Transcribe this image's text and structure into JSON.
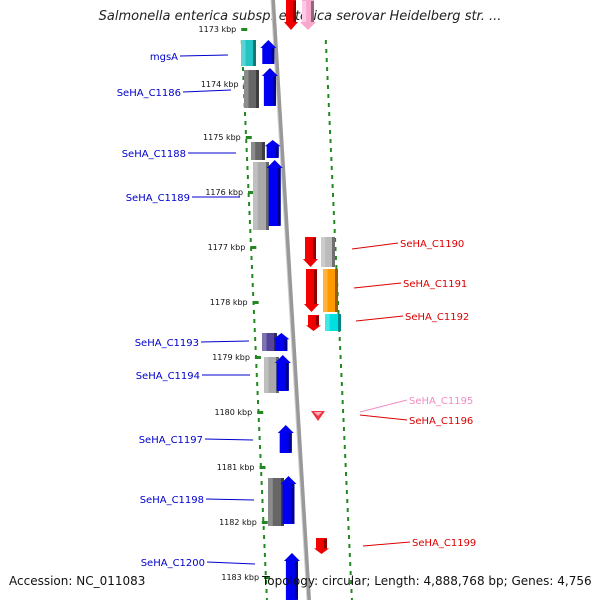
{
  "title": "Salmonella enterica subsp. enterica serovar Heidelberg str. ...",
  "footer": {
    "accession": "Accession: NC_011083",
    "topology": "Topology: circular; Length: 4,888,768 bp; Genes: 4,756"
  },
  "colors": {
    "forward_label": "#0000cc",
    "reverse_label": "#dd0000",
    "pale_label": "#f08cc0",
    "backbone": "#999999",
    "tick": "#228822"
  },
  "scale_ticks": [
    "1173 kbp",
    "1174 kbp",
    "1175 kbp",
    "1176 kbp",
    "1177 kbp",
    "1178 kbp",
    "1179 kbp",
    "1180 kbp",
    "1181 kbp",
    "1182 kbp",
    "1183 kbp"
  ],
  "genes_forward": [
    {
      "name": "mgsA",
      "color": "#0000ee"
    },
    {
      "name": "SeHA_C1186",
      "color": "#0000ee"
    },
    {
      "name": "SeHA_C1188",
      "color": "#0000ee"
    },
    {
      "name": "SeHA_C1189",
      "color": "#0000ee"
    },
    {
      "name": "SeHA_C1193",
      "color": "#0000ee"
    },
    {
      "name": "SeHA_C1194",
      "color": "#0000ee"
    },
    {
      "name": "SeHA_C1197",
      "color": "#0000ee"
    },
    {
      "name": "SeHA_C1198",
      "color": "#0000ee"
    },
    {
      "name": "SeHA_C1200",
      "color": "#0000ee"
    }
  ],
  "genes_reverse": [
    {
      "name": "SeHA_C1190",
      "color": "#ee0000"
    },
    {
      "name": "SeHA_C1191",
      "color": "#ee0000"
    },
    {
      "name": "SeHA_C1192",
      "color": "#ee0000"
    },
    {
      "name": "SeHA_C1195",
      "color": "#f08cc0"
    },
    {
      "name": "SeHA_C1196",
      "color": "#ee0000"
    },
    {
      "name": "SeHA_C1199",
      "color": "#ee0000"
    }
  ],
  "cog_boxes": [
    {
      "gene": "mgsA",
      "color": "#22c4c4"
    },
    {
      "gene": "SeHA_C1186",
      "color": "#666666"
    },
    {
      "gene": "SeHA_C1188",
      "color": "#666666"
    },
    {
      "gene": "SeHA_C1189",
      "color": "#aaaaaa"
    },
    {
      "gene": "SeHA_C1190",
      "color": "#bbbbbb"
    },
    {
      "gene": "SeHA_C1191",
      "color": "#ff9900"
    },
    {
      "gene": "SeHA_C1192",
      "color": "#00e0e0"
    },
    {
      "gene": "SeHA_C1193",
      "color": "#554499"
    },
    {
      "gene": "SeHA_C1194",
      "color": "#aaaaaa"
    },
    {
      "gene": "SeHA_C1198",
      "color": "#666666"
    }
  ]
}
